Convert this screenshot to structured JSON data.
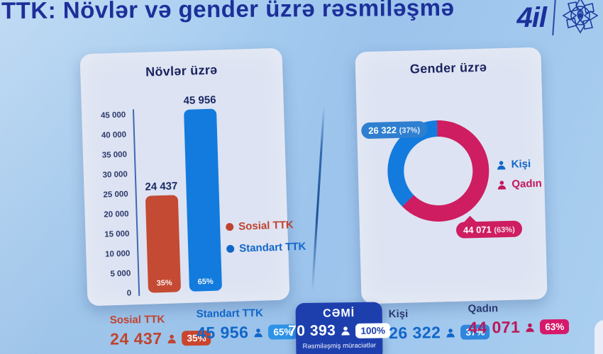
{
  "header": {
    "title": "TTK: Növlər və gender üzrə rəsmiləşmə",
    "logo_text": "4il"
  },
  "types_panel": {
    "title": "Növlər üzrə",
    "y_ticks": [
      "45 000",
      "40 000",
      "35 000",
      "30 000",
      "25 000",
      "20 000",
      "15 000",
      "10 000",
      "5 000",
      "0"
    ],
    "bars": [
      {
        "label": "Sosial TTK",
        "value_label": "24 437",
        "percent": "35%"
      },
      {
        "label": "Standart TTK",
        "value_label": "45 956",
        "percent": "65%"
      }
    ],
    "legend": [
      {
        "label": "Sosial TTK",
        "color": "#c0432f"
      },
      {
        "label": "Standart TTK",
        "color": "#1166c9"
      }
    ]
  },
  "gender_panel": {
    "title": "Gender üzrə",
    "slices": [
      {
        "label": "Kişi",
        "callout_value": "26 322",
        "callout_pct": "(37%)",
        "color": "#137bdd"
      },
      {
        "label": "Qadın",
        "callout_value": "44 071",
        "callout_pct": "(63%)",
        "color": "#ce1d60"
      }
    ]
  },
  "summary": {
    "items": [
      {
        "label": "Sosial TTK",
        "value": "24 437",
        "badge": "35%"
      },
      {
        "label": "Standart TTK",
        "value": "45 956",
        "badge": "65%"
      },
      {
        "label": "CƏMİ",
        "value": "70 393",
        "badge": "100%",
        "caption": "Rəsmiləşmiş müraciətlər"
      },
      {
        "label": "Kişi",
        "value": "26 322",
        "badge": "37%"
      },
      {
        "label": "Qadın",
        "value": "44 071",
        "badge": "63%"
      }
    ]
  },
  "colors": {
    "background": "#a7cdf0",
    "title_navy": "#1c2f9a",
    "panel": "#dde3f2",
    "bar_red": "#c44a33",
    "bar_blue": "#137bdd",
    "donut_pink": "#ce1d60",
    "donut_blue": "#137bdd",
    "total_card_blue": "#1d3fae",
    "badge_red": "#c9452e",
    "badge_blue": "#2e93e8",
    "badge_pink": "#d6196a"
  },
  "chart_data": [
    {
      "type": "bar",
      "title": "Növlər üzrə",
      "categories": [
        "Sosial TTK",
        "Standart TTK"
      ],
      "values": [
        24437,
        45956
      ],
      "percent_labels": [
        "35%",
        "65%"
      ],
      "colors": [
        "#c44a33",
        "#137bdd"
      ],
      "ylim": [
        0,
        45000
      ],
      "y_ticks": [
        0,
        5000,
        10000,
        15000,
        20000,
        25000,
        30000,
        35000,
        40000,
        45000
      ],
      "grid": false,
      "legend_position": "right"
    },
    {
      "type": "pie",
      "subtype": "donut",
      "title": "Gender üzrə",
      "categories": [
        "Kişi",
        "Qadın"
      ],
      "values": [
        26322,
        44071
      ],
      "percents": [
        37,
        63
      ],
      "colors": [
        "#137bdd",
        "#ce1d60"
      ],
      "callouts": [
        "26 322 (37%)",
        "44 071 (63%)"
      ],
      "start_angle_deg": -90,
      "direction": "clockwise",
      "draw_order": [
        1,
        0
      ],
      "legend_position": "right"
    }
  ]
}
